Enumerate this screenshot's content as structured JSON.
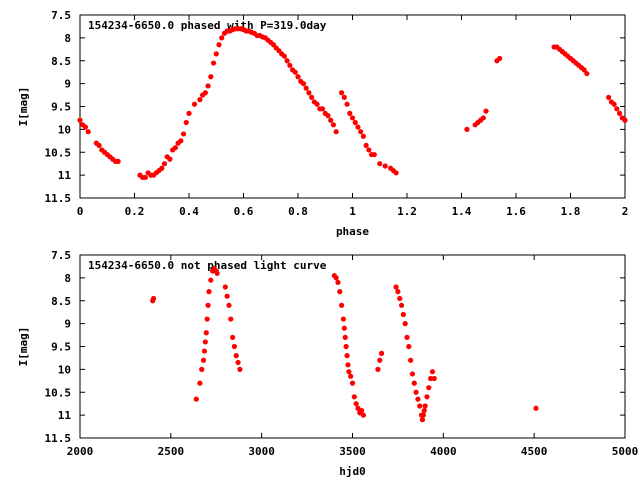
{
  "chart_data": [
    {
      "type": "scatter",
      "title": "154234-6650.0 phased with P=319.0day",
      "xlabel": "phase",
      "ylabel": "I[mag]",
      "xlim": [
        0,
        2
      ],
      "ylim": [
        7.5,
        11.5
      ],
      "y_inverted": true,
      "xticks": [
        "0",
        "0.2",
        "0.4",
        "0.6",
        "0.8",
        "1",
        "1.2",
        "1.4",
        "1.6",
        "1.8",
        "2"
      ],
      "yticks": [
        "7.5",
        "8",
        "8.5",
        "9",
        "9.5",
        "10",
        "10.5",
        "11",
        "11.5"
      ],
      "grid": false,
      "color": "#ff0000",
      "x": [
        0.0,
        0.01,
        0.02,
        0.03,
        0.06,
        0.07,
        0.08,
        0.09,
        0.1,
        0.11,
        0.12,
        0.13,
        0.14,
        0.22,
        0.23,
        0.24,
        0.25,
        0.26,
        0.27,
        0.28,
        0.29,
        0.3,
        0.31,
        0.32,
        0.33,
        0.34,
        0.35,
        0.36,
        0.37,
        0.38,
        0.39,
        0.4,
        0.42,
        0.44,
        0.45,
        0.46,
        0.47,
        0.48,
        0.49,
        0.5,
        0.51,
        0.52,
        0.53,
        0.54,
        0.55,
        0.56,
        0.57,
        0.58,
        0.59,
        0.6,
        0.61,
        0.62,
        0.63,
        0.64,
        0.65,
        0.66,
        0.67,
        0.68,
        0.69,
        0.7,
        0.71,
        0.72,
        0.73,
        0.74,
        0.75,
        0.76,
        0.77,
        0.78,
        0.79,
        0.8,
        0.81,
        0.82,
        0.83,
        0.84,
        0.85,
        0.86,
        0.87,
        0.88,
        0.89,
        0.9,
        0.91,
        0.92,
        0.93,
        0.94,
        0.96,
        0.97,
        0.98,
        0.99,
        1.0,
        1.01,
        1.02,
        1.03,
        1.04,
        1.05,
        1.06,
        1.07,
        1.08,
        1.1,
        1.12,
        1.14,
        1.15,
        1.16,
        1.42,
        1.45,
        1.46,
        1.47,
        1.48,
        1.49,
        1.53,
        1.54,
        1.74,
        1.75,
        1.76,
        1.77,
        1.78,
        1.79,
        1.8,
        1.81,
        1.82,
        1.83,
        1.84,
        1.85,
        1.86,
        1.94,
        1.95,
        1.96,
        1.97,
        1.98,
        1.99,
        2.0
      ],
      "y": [
        9.8,
        9.9,
        9.95,
        10.05,
        10.3,
        10.35,
        10.45,
        10.5,
        10.55,
        10.6,
        10.65,
        10.7,
        10.7,
        11.0,
        11.05,
        11.05,
        10.95,
        11.0,
        11.0,
        10.95,
        10.9,
        10.85,
        10.75,
        10.6,
        10.65,
        10.45,
        10.4,
        10.3,
        10.25,
        10.1,
        9.85,
        9.65,
        9.45,
        9.35,
        9.25,
        9.2,
        9.05,
        8.85,
        8.55,
        8.35,
        8.15,
        8.0,
        7.9,
        7.85,
        7.85,
        7.82,
        7.8,
        7.8,
        7.8,
        7.82,
        7.85,
        7.85,
        7.88,
        7.9,
        7.95,
        7.95,
        7.98,
        8.0,
        8.05,
        8.1,
        8.15,
        8.22,
        8.28,
        8.35,
        8.4,
        8.5,
        8.6,
        8.7,
        8.75,
        8.85,
        8.95,
        9.0,
        9.1,
        9.2,
        9.3,
        9.4,
        9.45,
        9.55,
        9.55,
        9.65,
        9.7,
        9.8,
        9.9,
        10.05,
        9.2,
        9.3,
        9.45,
        9.65,
        9.75,
        9.85,
        9.95,
        10.05,
        10.15,
        10.35,
        10.45,
        10.55,
        10.55,
        10.75,
        10.8,
        10.85,
        10.9,
        10.95,
        10.0,
        9.9,
        9.85,
        9.8,
        9.75,
        9.6,
        8.5,
        8.45,
        8.2,
        8.2,
        8.25,
        8.3,
        8.35,
        8.4,
        8.45,
        8.5,
        8.55,
        8.6,
        8.65,
        8.7,
        8.78,
        9.3,
        9.4,
        9.45,
        9.55,
        9.65,
        9.75,
        9.8
      ]
    },
    {
      "type": "scatter",
      "title": "154234-6650.0 not phased light curve",
      "xlabel": "hjd0",
      "ylabel": "I[mag]",
      "xlim": [
        2000,
        5000
      ],
      "ylim": [
        7.5,
        11.5
      ],
      "y_inverted": true,
      "xticks": [
        "2000",
        "2500",
        "3000",
        "3500",
        "4000",
        "4500",
        "5000"
      ],
      "yticks": [
        "7.5",
        "8",
        "8.5",
        "9",
        "9.5",
        "10",
        "10.5",
        "11",
        "11.5"
      ],
      "grid": false,
      "color": "#ff0000",
      "x": [
        2400,
        2405,
        2640,
        2660,
        2670,
        2680,
        2685,
        2690,
        2695,
        2700,
        2705,
        2710,
        2720,
        2730,
        2740,
        2750,
        2755,
        2800,
        2810,
        2820,
        2830,
        2840,
        2850,
        2860,
        2870,
        2880,
        3400,
        3410,
        3420,
        3430,
        3440,
        3450,
        3455,
        3460,
        3465,
        3470,
        3475,
        3480,
        3490,
        3500,
        3510,
        3520,
        3530,
        3540,
        3550,
        3560,
        3640,
        3650,
        3660,
        3740,
        3750,
        3760,
        3770,
        3780,
        3790,
        3800,
        3810,
        3820,
        3830,
        3840,
        3850,
        3860,
        3870,
        3880,
        3885,
        3890,
        3895,
        3900,
        3910,
        3920,
        3930,
        3940,
        3950,
        4510
      ],
      "y": [
        8.5,
        8.45,
        10.65,
        10.3,
        10.0,
        9.8,
        9.6,
        9.4,
        9.2,
        8.9,
        8.6,
        8.3,
        8.05,
        7.85,
        7.8,
        7.85,
        7.9,
        8.2,
        8.4,
        8.6,
        8.9,
        9.3,
        9.5,
        9.7,
        9.85,
        10.0,
        7.95,
        8.0,
        8.1,
        8.3,
        8.6,
        8.9,
        9.1,
        9.3,
        9.5,
        9.7,
        9.9,
        10.05,
        10.15,
        10.3,
        10.6,
        10.75,
        10.85,
        10.95,
        10.9,
        11.0,
        10.0,
        9.8,
        9.65,
        8.2,
        8.3,
        8.45,
        8.6,
        8.8,
        9.0,
        9.3,
        9.5,
        9.8,
        10.1,
        10.3,
        10.5,
        10.65,
        10.8,
        11.0,
        11.1,
        11.0,
        10.9,
        10.8,
        10.6,
        10.4,
        10.2,
        10.05,
        10.2,
        10.85
      ]
    }
  ]
}
